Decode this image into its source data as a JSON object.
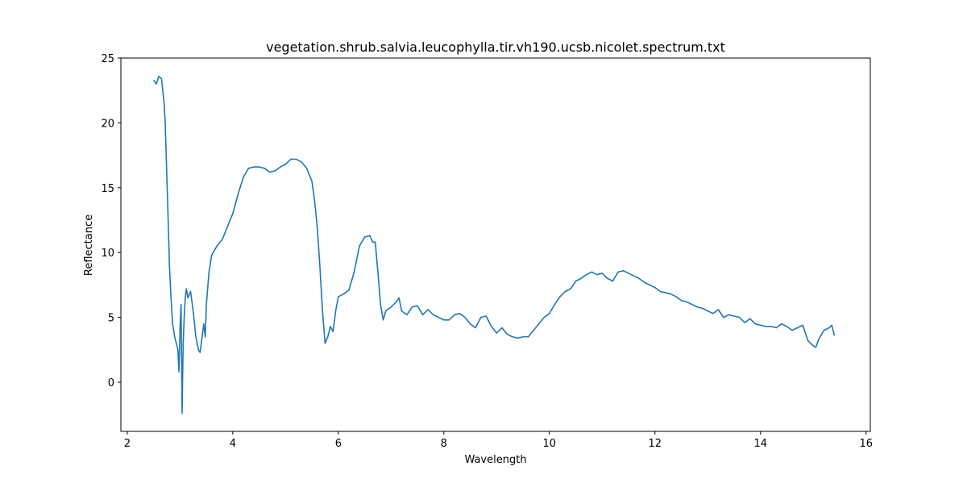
{
  "chart_data": {
    "type": "line",
    "title": "vegetation.shrub.salvia.leucophylla.tir.vh190.ucsb.nicolet.spectrum.txt",
    "x_label": "Wavelength",
    "y_label": "Reflectance",
    "color": "#1f77b4",
    "x": [
      2.5,
      2.55,
      2.6,
      2.65,
      2.7,
      2.72,
      2.75,
      2.78,
      2.8,
      2.83,
      2.86,
      2.9,
      2.93,
      2.96,
      2.98,
      3.0,
      3.02,
      3.04,
      3.06,
      3.08,
      3.1,
      3.12,
      3.15,
      3.2,
      3.25,
      3.3,
      3.35,
      3.38,
      3.42,
      3.45,
      3.48,
      3.5,
      3.55,
      3.6,
      3.7,
      3.8,
      3.9,
      4.0,
      4.1,
      4.2,
      4.3,
      4.4,
      4.5,
      4.6,
      4.7,
      4.8,
      4.9,
      5.0,
      5.1,
      5.2,
      5.3,
      5.4,
      5.5,
      5.55,
      5.6,
      5.65,
      5.7,
      5.75,
      5.8,
      5.85,
      5.9,
      5.95,
      6.0,
      6.1,
      6.2,
      6.3,
      6.4,
      6.5,
      6.6,
      6.65,
      6.7,
      6.75,
      6.8,
      6.85,
      6.9,
      7.0,
      7.1,
      7.15,
      7.2,
      7.3,
      7.4,
      7.5,
      7.6,
      7.7,
      7.8,
      7.9,
      8.0,
      8.1,
      8.2,
      8.3,
      8.4,
      8.5,
      8.6,
      8.7,
      8.8,
      8.9,
      9.0,
      9.1,
      9.2,
      9.3,
      9.4,
      9.5,
      9.6,
      9.7,
      9.8,
      9.9,
      10.0,
      10.1,
      10.2,
      10.3,
      10.4,
      10.5,
      10.6,
      10.7,
      10.8,
      10.9,
      11.0,
      11.1,
      11.2,
      11.3,
      11.4,
      11.5,
      11.6,
      11.7,
      11.8,
      11.9,
      12.0,
      12.1,
      12.2,
      12.3,
      12.4,
      12.5,
      12.6,
      12.7,
      12.8,
      12.9,
      13.0,
      13.1,
      13.2,
      13.3,
      13.4,
      13.5,
      13.6,
      13.7,
      13.8,
      13.9,
      14.0,
      14.1,
      14.2,
      14.3,
      14.4,
      14.5,
      14.6,
      14.7,
      14.8,
      14.9,
      15.0,
      15.05,
      15.1,
      15.2,
      15.3,
      15.35,
      15.4
    ],
    "values": [
      23.3,
      23.0,
      23.6,
      23.4,
      21.5,
      20,
      16,
      12,
      9,
      6.5,
      4.5,
      3.5,
      3,
      2.5,
      0.8,
      4,
      6,
      -2.4,
      3,
      5,
      6.5,
      7.2,
      6.5,
      7,
      5.5,
      3.5,
      2.5,
      2.3,
      3.5,
      4.5,
      3.5,
      6,
      8.5,
      9.8,
      10.5,
      11,
      12,
      13,
      14.5,
      15.8,
      16.5,
      16.6,
      16.6,
      16.5,
      16.2,
      16.3,
      16.6,
      16.8,
      17.2,
      17.2,
      17.0,
      16.5,
      15.5,
      14,
      12,
      9,
      5.5,
      3.0,
      3.5,
      4.3,
      3.9,
      5.5,
      6.6,
      6.8,
      7.1,
      8.5,
      10.5,
      11.2,
      11.3,
      10.8,
      10.8,
      8.5,
      6,
      4.8,
      5.5,
      5.8,
      6.2,
      6.5,
      5.5,
      5.2,
      5.8,
      5.9,
      5.2,
      5.6,
      5.2,
      5.0,
      4.8,
      4.8,
      5.2,
      5.3,
      5.0,
      4.5,
      4.2,
      5.0,
      5.1,
      4.3,
      3.8,
      4.2,
      3.7,
      3.5,
      3.4,
      3.5,
      3.5,
      4.0,
      4.5,
      5.0,
      5.3,
      6.0,
      6.6,
      7.0,
      7.2,
      7.8,
      8.0,
      8.3,
      8.5,
      8.3,
      8.4,
      8.0,
      7.8,
      8.5,
      8.6,
      8.4,
      8.2,
      8.0,
      7.7,
      7.5,
      7.3,
      7.0,
      6.9,
      6.8,
      6.6,
      6.3,
      6.2,
      6.0,
      5.8,
      5.7,
      5.5,
      5.3,
      5.6,
      5.0,
      5.2,
      5.1,
      5.0,
      4.6,
      4.9,
      4.5,
      4.4,
      4.3,
      4.3,
      4.2,
      4.5,
      4.3,
      4.0,
      4.2,
      4.4,
      3.2,
      2.8,
      2.7,
      3.3,
      4.0,
      4.2,
      4.4,
      3.6
    ],
    "xlim": [
      1.88,
      16.08
    ],
    "ylim": [
      -3.79,
      25
    ],
    "xticks": [
      2,
      4,
      6,
      8,
      10,
      12,
      14,
      16
    ],
    "yticks": [
      0,
      5,
      10,
      15,
      20,
      25
    ]
  }
}
